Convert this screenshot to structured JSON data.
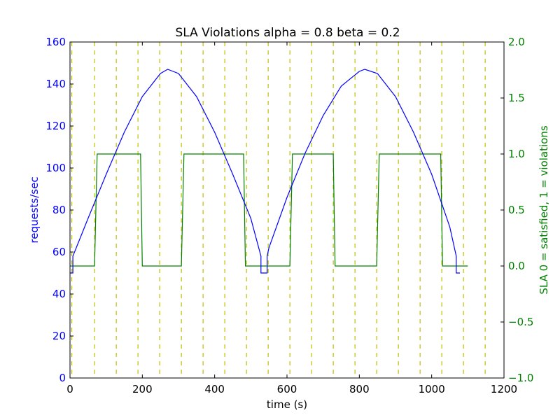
{
  "chart_data": {
    "type": "line",
    "title": "SLA Violations alpha = 0.8 beta = 0.2",
    "xlabel": "time (s)",
    "ylabel_left": "requests/sec",
    "ylabel_right": "SLA 0 = satisfied, 1 = violations",
    "xlim": [
      0,
      1200
    ],
    "ylim_left": [
      0,
      160
    ],
    "ylim_right": [
      -1.0,
      2.0
    ],
    "x_ticks": [
      "0",
      "200",
      "400",
      "600",
      "800",
      "1000",
      "1200"
    ],
    "y_ticks_left": [
      "0",
      "20",
      "40",
      "60",
      "80",
      "100",
      "120",
      "140",
      "160"
    ],
    "y_ticks_right": [
      "−1.0",
      "−0.5",
      "0.0",
      "0.5",
      "1.0",
      "1.5",
      "2.0"
    ],
    "grid": false,
    "colors": {
      "requests": "#0000ff",
      "sla": "#008000",
      "vlines": "#bfbf00"
    },
    "requests_series": {
      "x": [
        0,
        8,
        8,
        50,
        100,
        150,
        200,
        250,
        270,
        300,
        350,
        400,
        450,
        500,
        528,
        528,
        545,
        545,
        550,
        600,
        650,
        700,
        750,
        800,
        815,
        850,
        900,
        950,
        1000,
        1050,
        1068,
        1068,
        1078
      ],
      "y": [
        50,
        50,
        58,
        76,
        97,
        117,
        134,
        145,
        147,
        145,
        134,
        117,
        97,
        76,
        58,
        50,
        50,
        58,
        62,
        86,
        107,
        125,
        139,
        146,
        147,
        145,
        134,
        117,
        97,
        72,
        58,
        50,
        50
      ]
    },
    "sla_series": {
      "x": [
        0,
        68,
        75,
        195,
        200,
        308,
        315,
        480,
        485,
        608,
        615,
        728,
        733,
        848,
        855,
        1025,
        1030,
        1100
      ],
      "y": [
        0,
        0,
        1,
        1,
        0,
        0,
        1,
        1,
        0,
        0,
        1,
        1,
        0,
        0,
        1,
        1,
        0,
        0
      ]
    },
    "vertical_lines_x": [
      5,
      68,
      128,
      188,
      248,
      308,
      368,
      428,
      488,
      548,
      608,
      668,
      728,
      788,
      848,
      908,
      968,
      1028,
      1088,
      1148
    ]
  }
}
